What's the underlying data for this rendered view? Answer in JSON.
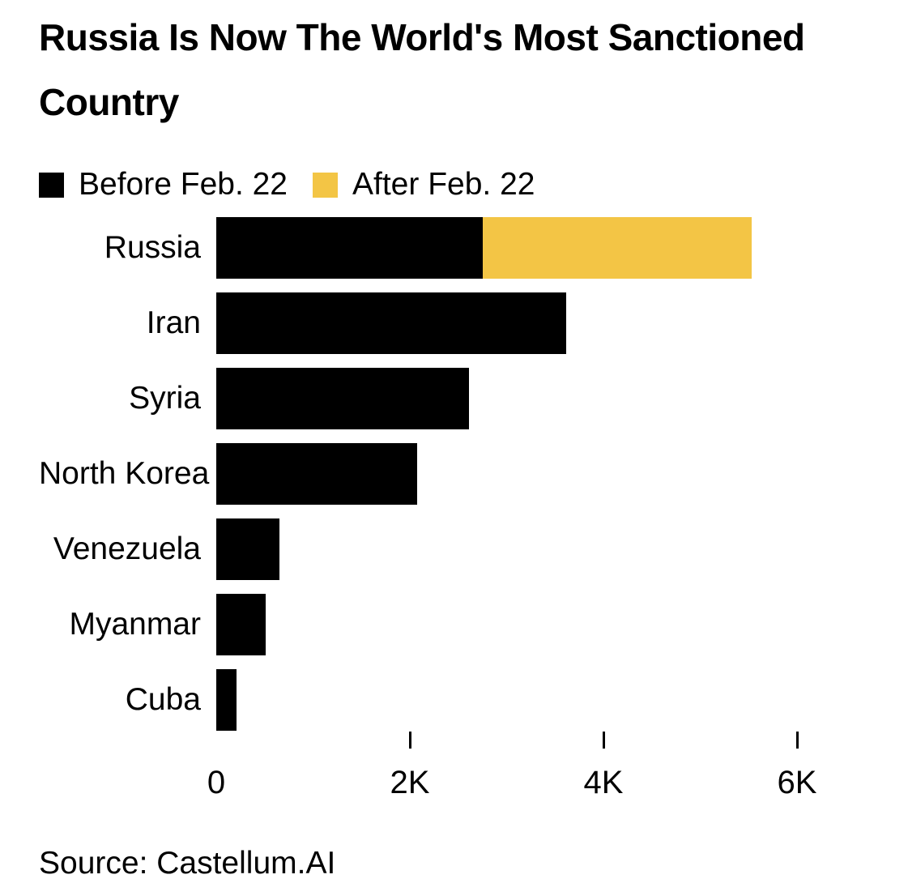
{
  "title": {
    "line1": "Russia Is Now The World's Most Sanctioned",
    "line2": "Country"
  },
  "legend": [
    {
      "label": "Before Feb. 22",
      "color": "#000000"
    },
    {
      "label": "After Feb. 22",
      "color": "#F3C545"
    }
  ],
  "source": {
    "text": "Source: Castellum.AI"
  },
  "colors": {
    "before": "#000000",
    "after": "#F3C545",
    "text": "#000000",
    "background": "#FFFFFF"
  },
  "chart_data": {
    "type": "bar",
    "orientation": "horizontal",
    "stacked": true,
    "title": "Russia Is Now The World's Most Sanctioned Country",
    "categories": [
      "Russia",
      "Iran",
      "Syria",
      "North Korea",
      "Venezuela",
      "Myanmar",
      "Cuba"
    ],
    "series": [
      {
        "name": "Before Feb. 22",
        "color": "#000000",
        "values": [
          2754,
          3616,
          2608,
          2077,
          651,
          510,
          208
        ]
      },
      {
        "name": "After Feb. 22",
        "color": "#F3C545",
        "values": [
          2778,
          0,
          0,
          0,
          0,
          0,
          0
        ]
      }
    ],
    "totals": [
      5532,
      3616,
      2608,
      2077,
      651,
      510,
      208
    ],
    "xlabel": "",
    "ylabel": "",
    "xlim": [
      0,
      6000
    ],
    "x_ticks": [
      {
        "value": 0,
        "label": "0"
      },
      {
        "value": 2000,
        "label": "2K"
      },
      {
        "value": 4000,
        "label": "4K"
      },
      {
        "value": 6000,
        "label": "6K"
      }
    ],
    "grid": false,
    "legend_position": "top"
  }
}
